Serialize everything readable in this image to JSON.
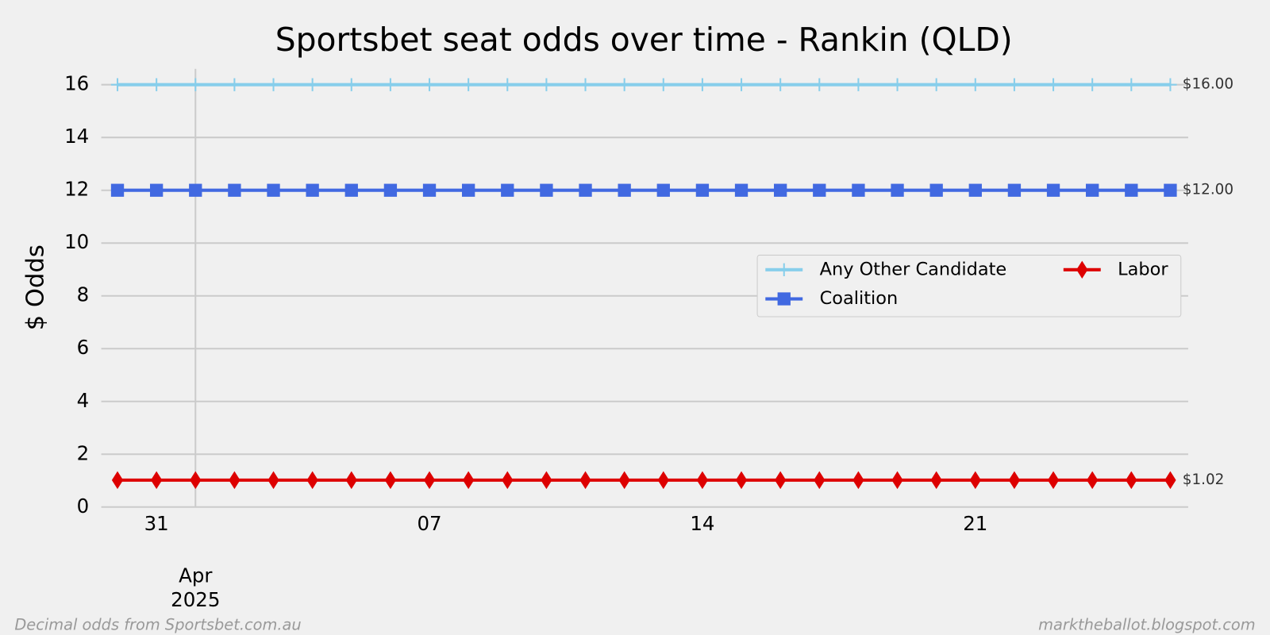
{
  "chart_data": {
    "type": "line",
    "title": "Sportsbet seat odds over time - Rankin (QLD)",
    "y_label": "$ Odds",
    "footnote_left": "Decimal odds from Sportsbet.com.au",
    "footnote_right": "marktheballot.blogspot.com",
    "x": [
      "2025-03-30",
      "2025-03-31",
      "2025-04-01",
      "2025-04-02",
      "2025-04-03",
      "2025-04-04",
      "2025-04-05",
      "2025-04-06",
      "2025-04-07",
      "2025-04-08",
      "2025-04-09",
      "2025-04-10",
      "2025-04-11",
      "2025-04-12",
      "2025-04-13",
      "2025-04-14",
      "2025-04-15",
      "2025-04-16",
      "2025-04-17",
      "2025-04-18",
      "2025-04-19",
      "2025-04-20",
      "2025-04-21",
      "2025-04-22",
      "2025-04-23",
      "2025-04-24",
      "2025-04-25",
      "2025-04-26"
    ],
    "xlim": [
      "2025-03-29T14:00",
      "2025-04-26T11:00"
    ],
    "xticks": [
      {
        "value": "2025-03-31",
        "label": "31"
      },
      {
        "value": "2025-04-01",
        "label": "Apr\n2025",
        "major": true
      },
      {
        "value": "2025-04-07",
        "label": "07"
      },
      {
        "value": "2025-04-14",
        "label": "14"
      },
      {
        "value": "2025-04-21",
        "label": "21"
      }
    ],
    "ylim": [
      0,
      16.6
    ],
    "yticks": [
      0,
      2,
      4,
      6,
      8,
      10,
      12,
      14,
      16
    ],
    "grid": true,
    "legend": "center right",
    "legend_columns": 2,
    "series": [
      {
        "name": "Any Other Candidate",
        "color": "#87ceeb",
        "marker": "plus",
        "values": [
          16,
          16,
          16,
          16,
          16,
          16,
          16,
          16,
          16,
          16,
          16,
          16,
          16,
          16,
          16,
          16,
          16,
          16,
          16,
          16,
          16,
          16,
          16,
          16,
          16,
          16,
          16,
          16
        ],
        "value_labels": [
          null,
          null,
          null,
          null,
          null,
          null,
          null,
          null,
          null,
          null,
          null,
          null,
          null,
          null,
          null,
          null,
          null,
          null,
          null,
          null,
          null,
          null,
          null,
          null,
          null,
          null,
          null,
          "$16.00"
        ]
      },
      {
        "name": "Coalition",
        "color": "#4169e1",
        "marker": "square",
        "values": [
          12,
          12,
          12,
          12,
          12,
          12,
          12,
          12,
          12,
          12,
          12,
          12,
          12,
          12,
          12,
          12,
          12,
          12,
          12,
          12,
          12,
          12,
          12,
          12,
          12,
          12,
          12,
          12
        ],
        "value_labels": [
          null,
          null,
          null,
          null,
          null,
          null,
          null,
          null,
          null,
          null,
          null,
          null,
          null,
          null,
          null,
          null,
          null,
          null,
          null,
          null,
          null,
          null,
          null,
          null,
          null,
          null,
          null,
          "$12.00"
        ]
      },
      {
        "name": "Labor",
        "color": "#dd0000",
        "marker": "diamond",
        "values": [
          1.02,
          1.02,
          1.02,
          1.02,
          1.02,
          1.02,
          1.02,
          1.02,
          1.02,
          1.02,
          1.02,
          1.02,
          1.02,
          1.02,
          1.02,
          1.02,
          1.02,
          1.02,
          1.02,
          1.02,
          1.02,
          1.02,
          1.02,
          1.02,
          1.02,
          1.02,
          1.02,
          1.02
        ],
        "value_labels": [
          null,
          null,
          null,
          null,
          null,
          null,
          null,
          null,
          null,
          null,
          null,
          null,
          null,
          null,
          null,
          null,
          null,
          null,
          null,
          null,
          null,
          null,
          null,
          null,
          null,
          null,
          null,
          "$1.02"
        ]
      }
    ]
  }
}
